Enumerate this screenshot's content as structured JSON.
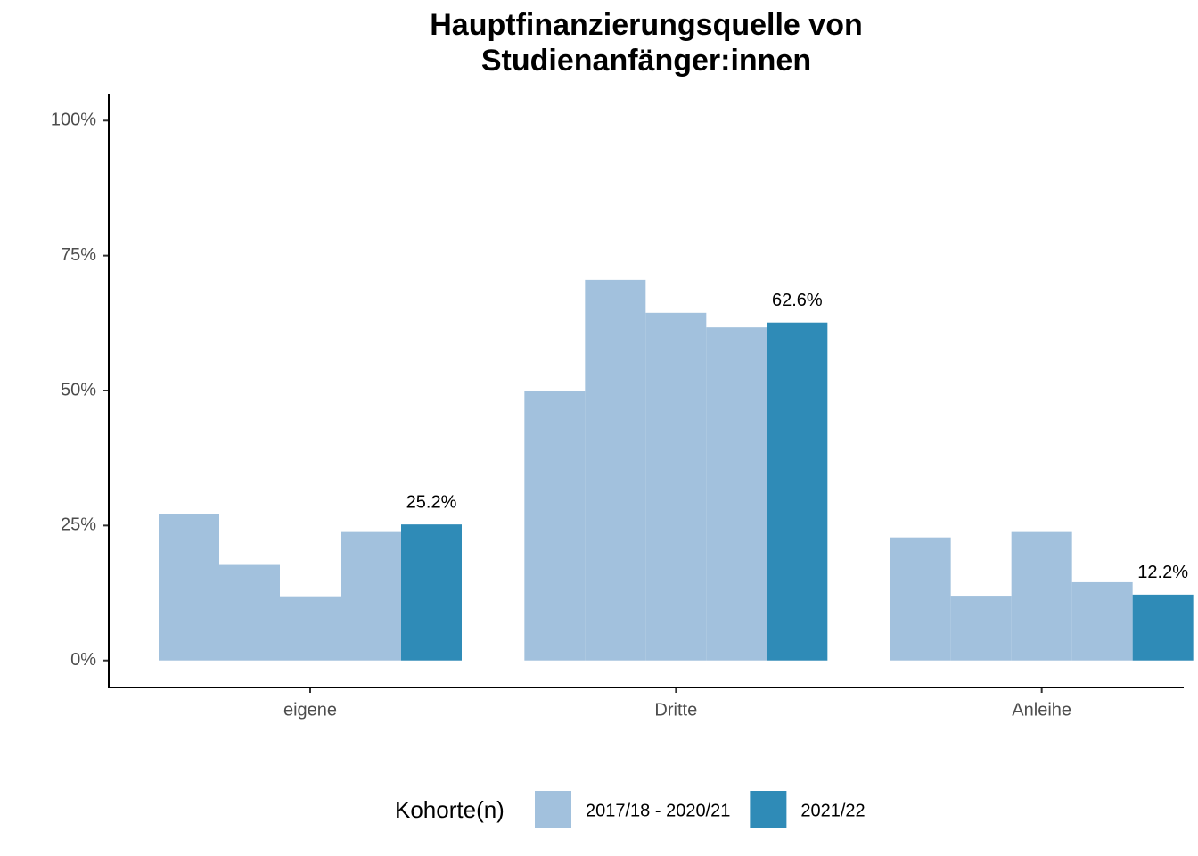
{
  "chart_data": {
    "type": "bar",
    "title": [
      "Hauptfinanzierungsquelle von",
      "Studienanfänger:innen"
    ],
    "categories": [
      "eigene",
      "Dritte",
      "Anleihe"
    ],
    "series": [
      {
        "name": "2017/18 - 2020/21",
        "color": "#a2c1dd",
        "values": [
          [
            27.2,
            17.7,
            11.9,
            23.8
          ],
          [
            50.0,
            70.5,
            64.4,
            61.7
          ],
          [
            22.8,
            12.0,
            23.8,
            14.5
          ]
        ]
      },
      {
        "name": "2021/22",
        "color": "#2f8bb7",
        "values": [
          25.2,
          62.6,
          12.2
        ],
        "value_labels": [
          "25.2%",
          "62.6%",
          "12.2%"
        ]
      }
    ],
    "ylim": [
      -5,
      105
    ],
    "yticks": [
      {
        "value": 0,
        "label": "0%"
      },
      {
        "value": 25,
        "label": "25%"
      },
      {
        "value": 50,
        "label": "50%"
      },
      {
        "value": 75,
        "label": "75%"
      },
      {
        "value": 100,
        "label": "100%"
      }
    ],
    "legend_title": "Kohorte(n)",
    "legend": "bottom"
  }
}
